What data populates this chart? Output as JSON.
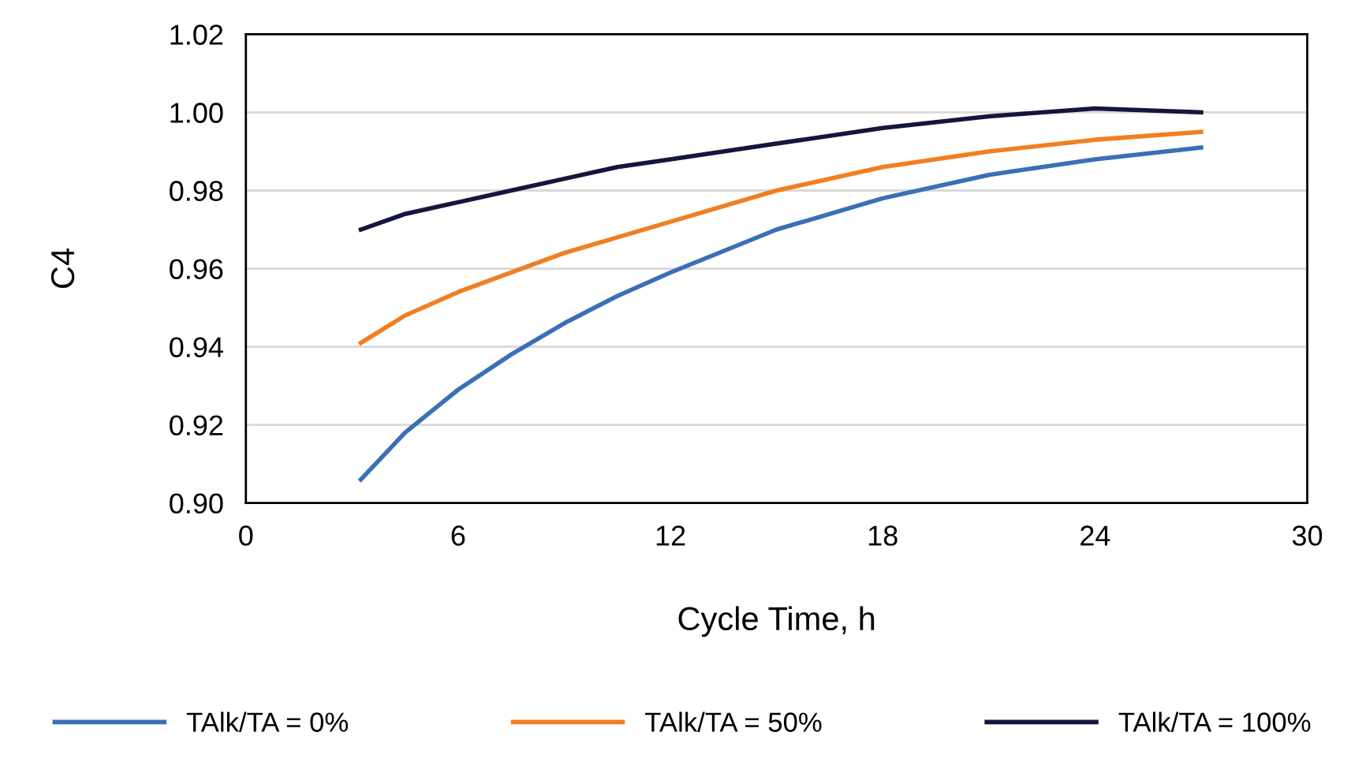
{
  "chart_data": {
    "type": "line",
    "xlabel": "Cycle Time, h",
    "ylabel": "C4",
    "xlim": [
      0,
      30
    ],
    "xticks": [
      0,
      6,
      12,
      18,
      24,
      30
    ],
    "ylim": [
      0.9,
      1.02
    ],
    "yticks": [
      {
        "value": 0.9,
        "label": "0.90"
      },
      {
        "value": 0.92,
        "label": "0.92"
      },
      {
        "value": 0.94,
        "label": "0.94"
      },
      {
        "value": 0.96,
        "label": "0.96"
      },
      {
        "value": 0.98,
        "label": "0.98"
      },
      {
        "value": 1.0,
        "label": "1.00"
      },
      {
        "value": 1.02,
        "label": "1.02"
      }
    ],
    "grid": "y",
    "legend": "bottom",
    "marker": "none",
    "line_style": "solid",
    "x": [
      3.25,
      4.5,
      6,
      7.5,
      9,
      10.5,
      12,
      15,
      18,
      21,
      24,
      27
    ],
    "series": [
      {
        "name": "TAlk/TA = 0%",
        "color": "#3b6fb6",
        "values": [
          0.906,
          0.918,
          0.929,
          0.938,
          0.946,
          0.953,
          0.959,
          0.97,
          0.978,
          0.984,
          0.988,
          0.991
        ]
      },
      {
        "name": "TAlk/TA = 50%",
        "color": "#f07f22",
        "values": [
          0.941,
          0.948,
          0.954,
          0.959,
          0.964,
          0.968,
          0.972,
          0.98,
          0.986,
          0.99,
          0.993,
          0.995
        ]
      },
      {
        "name": "TAlk/TA = 100%",
        "color": "#14163f",
        "values": [
          0.97,
          0.974,
          0.977,
          0.98,
          0.983,
          0.986,
          0.988,
          0.992,
          0.996,
          0.999,
          1.001,
          1.0
        ]
      }
    ]
  }
}
